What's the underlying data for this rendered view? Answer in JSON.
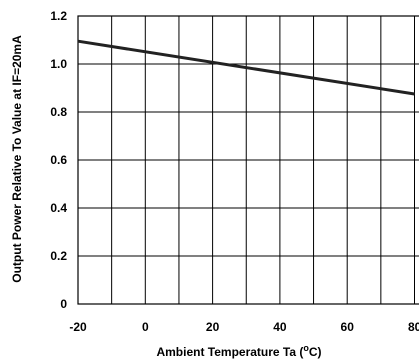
{
  "chart_data": {
    "type": "line",
    "xlabel": "Ambient Temperature Ta (",
    "xlabel_unit": "o",
    "xlabel_unit_suffix": "C)",
    "ylabel": "Output Power Relative To Value at IF=20mA",
    "xlim": [
      -20,
      80
    ],
    "ylim": [
      0,
      1.2
    ],
    "x_ticks": [
      -20,
      0,
      20,
      40,
      60,
      80
    ],
    "x_tick_labels": [
      "-20",
      "0",
      "20",
      "40",
      "60",
      "80"
    ],
    "y_ticks": [
      0,
      0.2,
      0.4,
      0.6,
      0.8,
      1.0,
      1.2
    ],
    "y_tick_labels": [
      "0",
      "0.2",
      "0.4",
      "0.6",
      "0.8",
      "1.0",
      "1.2"
    ],
    "x_grid_step": 10,
    "y_grid_step": 0.2,
    "grid": true,
    "series": [
      {
        "x": [
          -20,
          80
        ],
        "y": [
          1.095,
          0.875
        ],
        "color": "#222222"
      }
    ]
  }
}
